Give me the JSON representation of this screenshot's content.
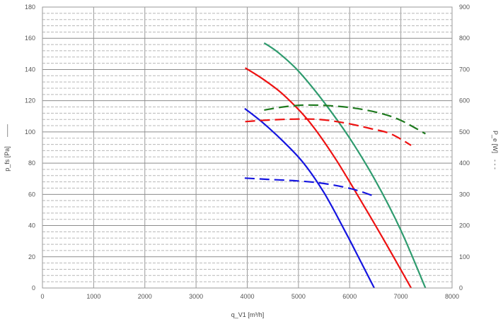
{
  "chart_data": {
    "type": "line",
    "xlabel": "q_V1 [m³/h]",
    "ylabel": "p_fs [Pa]",
    "ylabel_suffix": "——",
    "y2label": "P_e [W]",
    "y2label_suffix": "- - -",
    "xlim": [
      0,
      8000
    ],
    "ylim": [
      0,
      180
    ],
    "y2lim": [
      0,
      900
    ],
    "x_ticks": [
      "0",
      "1000",
      "2000",
      "3000",
      "4000",
      "5000",
      "6000",
      "7000",
      "8000"
    ],
    "y_ticks": [
      "0",
      "20",
      "40",
      "60",
      "80",
      "100",
      "120",
      "140",
      "160",
      "180"
    ],
    "y2_ticks": [
      "0",
      "100",
      "200",
      "300",
      "400",
      "500",
      "600",
      "700",
      "800",
      "900"
    ],
    "grid": true,
    "series": [
      {
        "axis": "left",
        "style": "solid",
        "color": "#2e9b6e",
        "x": [
          4330,
          4600,
          5000,
          5500,
          6000,
          6500,
          7000,
          7480
        ],
        "values": [
          157,
          151,
          139,
          119,
          96,
          69,
          37,
          0
        ]
      },
      {
        "axis": "left",
        "style": "solid",
        "color": "#ee1111",
        "x": [
          3960,
          4300,
          4700,
          5200,
          5700,
          6200,
          6700,
          7200
        ],
        "values": [
          141,
          134,
          124,
          107,
          84,
          57,
          29,
          0
        ]
      },
      {
        "axis": "left",
        "style": "solid",
        "color": "#1515e0",
        "x": [
          3950,
          4300,
          4700,
          5100,
          5500,
          5900,
          6200,
          6480
        ],
        "values": [
          115,
          106,
          94,
          80,
          61,
          37,
          18,
          0
        ]
      },
      {
        "axis": "right",
        "style": "dashed",
        "color": "#1f7a1f",
        "x": [
          4330,
          4700,
          5100,
          5600,
          6100,
          6600,
          7000,
          7480
        ],
        "values": [
          570,
          580,
          586,
          584,
          576,
          560,
          537,
          494
        ]
      },
      {
        "axis": "right",
        "style": "dashed",
        "color": "#ee1111",
        "x": [
          3960,
          4400,
          4900,
          5400,
          5900,
          6400,
          6800,
          7200
        ],
        "values": [
          533,
          538,
          541,
          540,
          529,
          511,
          494,
          457
        ]
      },
      {
        "axis": "right",
        "style": "dashed",
        "color": "#1515e0",
        "x": [
          3950,
          4400,
          4900,
          5400,
          5900,
          6200,
          6480
        ],
        "values": [
          352,
          348,
          344,
          337,
          323,
          310,
          294
        ]
      }
    ]
  }
}
